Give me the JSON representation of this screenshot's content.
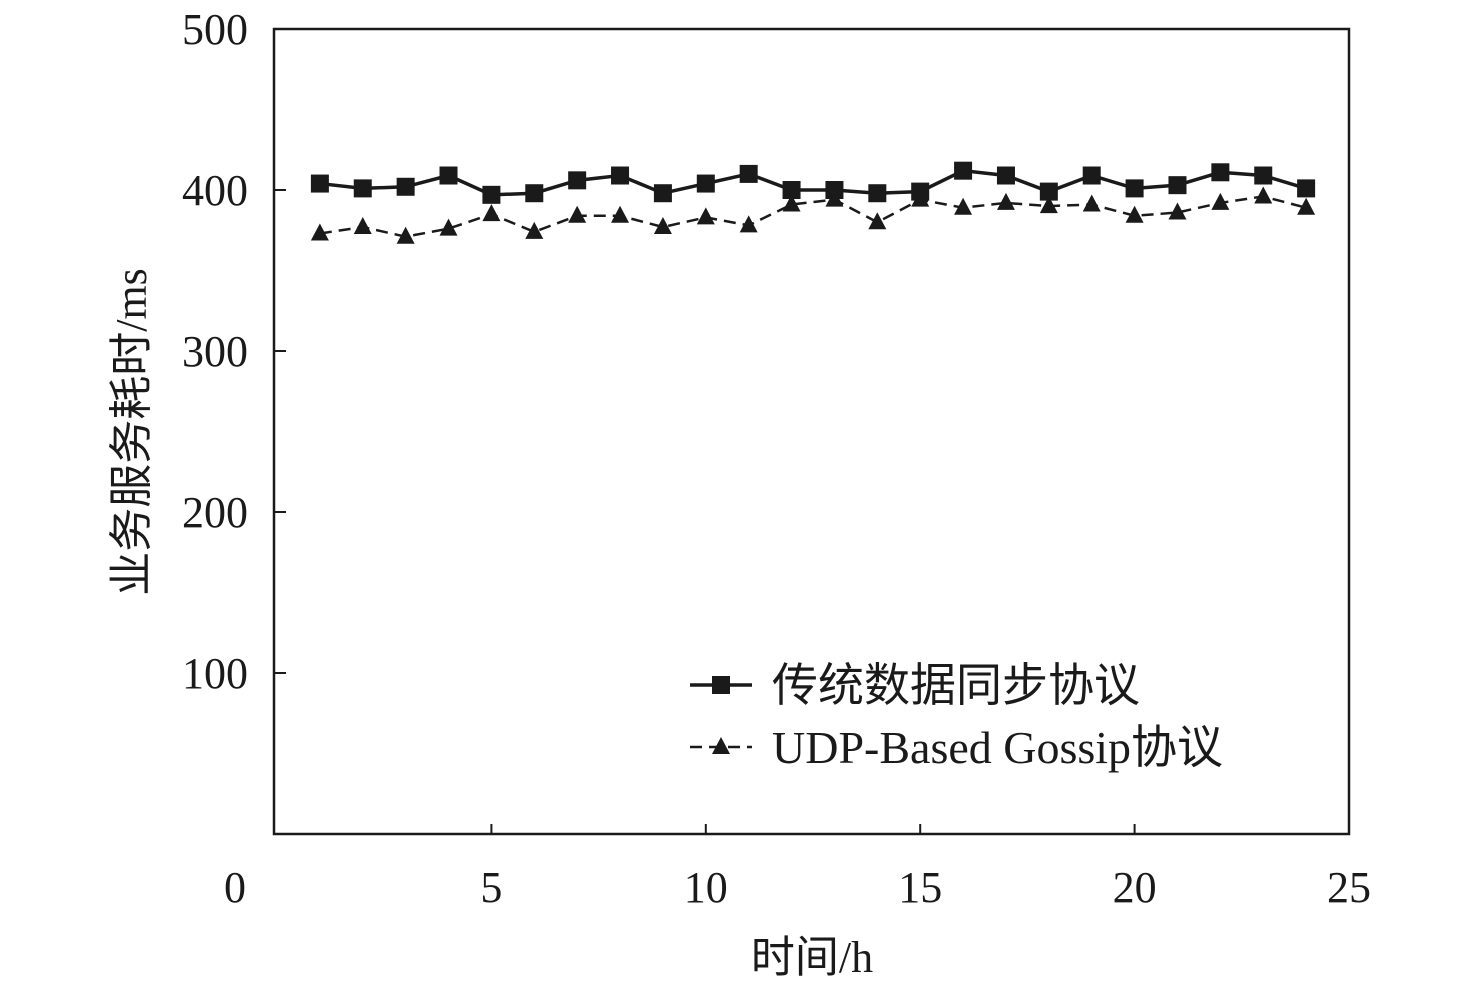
{
  "chart_data": {
    "type": "line",
    "title": "",
    "xlabel": "时间/h",
    "ylabel": "业务服务耗时/ms",
    "xlim": [
      0,
      25
    ],
    "ylim": [
      0,
      500
    ],
    "xticks": [
      0,
      5,
      10,
      15,
      20,
      25
    ],
    "yticks": [
      100,
      200,
      300,
      400,
      500
    ],
    "grid": false,
    "legend_position": "bottom-right",
    "x": [
      1,
      2,
      3,
      4,
      5,
      6,
      7,
      8,
      9,
      10,
      11,
      12,
      13,
      14,
      15,
      16,
      17,
      18,
      19,
      20,
      21,
      22,
      23,
      24
    ],
    "series": [
      {
        "name": "传统数据同步协议",
        "marker": "square",
        "line": "solid",
        "values": [
          404,
          401,
          402,
          409,
          397,
          398,
          406,
          409,
          398,
          404,
          410,
          400,
          400,
          398,
          399,
          412,
          409,
          399,
          409,
          401,
          403,
          411,
          409,
          401
        ]
      },
      {
        "name": "UDP-Based Gossip协议",
        "marker": "triangle",
        "line": "dashed",
        "values": [
          373,
          377,
          371,
          376,
          385,
          374,
          384,
          384,
          377,
          383,
          378,
          391,
          394,
          380,
          394,
          389,
          392,
          390,
          391,
          384,
          386,
          392,
          396,
          389
        ]
      }
    ]
  }
}
